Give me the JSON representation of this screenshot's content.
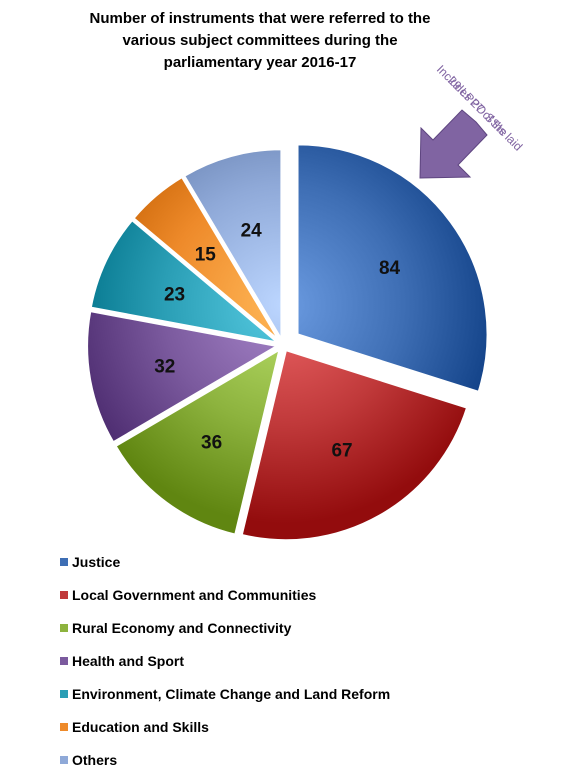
{
  "title": {
    "line1": "Number of instruments that were referred to the",
    "line2": "various subject committees during the",
    "line3": "parliamentary year 2016-17"
  },
  "annotation": {
    "line1": "Includes  27 of the",
    "line2": "29 LPPO SSIs laid",
    "color": "#8064A2"
  },
  "chart_data": {
    "type": "pie",
    "title": "Number of instruments that were referred to the various subject committees during the parliamentary year 2016-17",
    "legend_position": "bottom",
    "slices": [
      {
        "label": "Justice",
        "value": 84,
        "color": "#3E6EB4",
        "exploded": true
      },
      {
        "label": "Local Government and Communities",
        "value": 67,
        "color": "#C0393A"
      },
      {
        "label": "Rural Economy and Connectivity",
        "value": 36,
        "color": "#8DB33E"
      },
      {
        "label": "Health and Sport",
        "value": 32,
        "color": "#7B5A9E"
      },
      {
        "label": "Environment, Climate Change and Land Reform",
        "value": 23,
        "color": "#2A9EB5"
      },
      {
        "label": "Education and Skills",
        "value": 15,
        "color": "#EE8A2A"
      },
      {
        "label": "Others",
        "value": 24,
        "color": "#8FA9D8"
      }
    ]
  }
}
